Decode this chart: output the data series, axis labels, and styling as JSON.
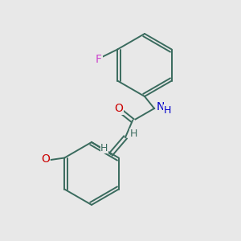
{
  "background_color": "#e8e8e8",
  "bond_color": "#3a6b5e",
  "atom_colors": {
    "F": "#cc44cc",
    "O": "#cc0000",
    "N": "#0000cc",
    "H": "#3a6b5e",
    "C": "#3a6b5e"
  },
  "font_size": 9,
  "lw": 1.4
}
